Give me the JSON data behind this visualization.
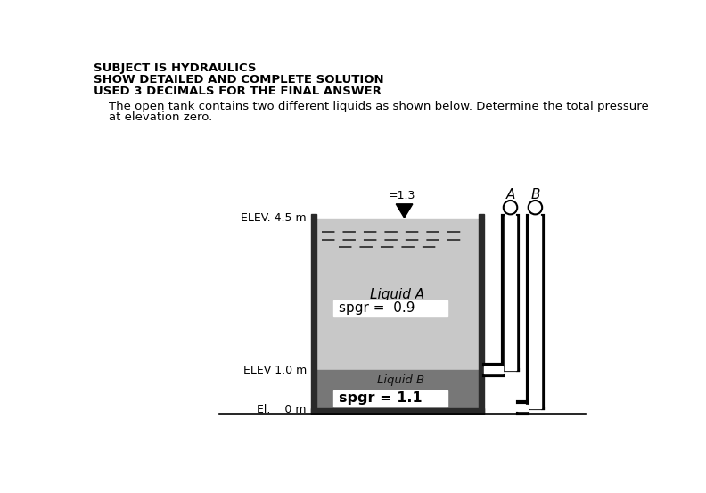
{
  "title_line1": "SUBJECT IS HYDRAULICS",
  "title_line2": "SHOW DETAILED AND COMPLETE SOLUTION",
  "title_line3": "USED 3 DECIMALS FOR THE FINAL ANSWER",
  "problem_line1": "    The open tank contains two different liquids as shown below. Determine the total pressure",
  "problem_line2": "    at elevation zero.",
  "elev_45_label": "ELEV. 4.5 m",
  "elev_10_label": "ELEV 1.0 m",
  "elev_0_label": "El.    0 m",
  "spgr_top_label": "=1.3",
  "liquid_a_label": "Liquid A",
  "liquid_a_spgr": "spgr =  0.9",
  "liquid_b_label": "Liquid B",
  "liquid_b_spgr": "spgr = 1.1",
  "manometer_a": "A",
  "manometer_b": "B",
  "tank_color": "#c8c8c8",
  "liquid_b_color": "#777777",
  "tank_wall_color": "#2a2a2a",
  "bg_color": "#ffffff",
  "dashed_color": "#333333"
}
